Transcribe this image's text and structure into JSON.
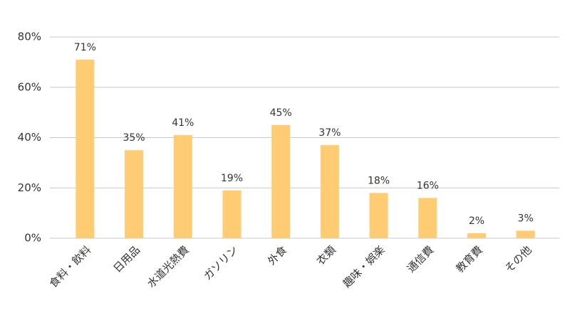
{
  "chart_data": {
    "type": "bar",
    "categories": [
      "食料・飲料",
      "日用品",
      "水道光熱費",
      "ガソリン",
      "外食",
      "衣類",
      "趣味・娯楽",
      "通信費",
      "教育費",
      "その他"
    ],
    "values": [
      71,
      35,
      41,
      19,
      45,
      37,
      18,
      16,
      2,
      3
    ],
    "value_labels": [
      "71%",
      "35%",
      "41%",
      "19%",
      "45%",
      "37%",
      "18%",
      "16%",
      "2%",
      "3%"
    ],
    "color": "#ffcc73",
    "ylim": [
      0,
      80
    ],
    "yticks": [
      {
        "value": 0,
        "label": "0%"
      },
      {
        "value": 20,
        "label": "20%"
      },
      {
        "value": 40,
        "label": "40%"
      },
      {
        "value": 60,
        "label": "60%"
      },
      {
        "value": 80,
        "label": "80%"
      }
    ],
    "grid": true
  }
}
